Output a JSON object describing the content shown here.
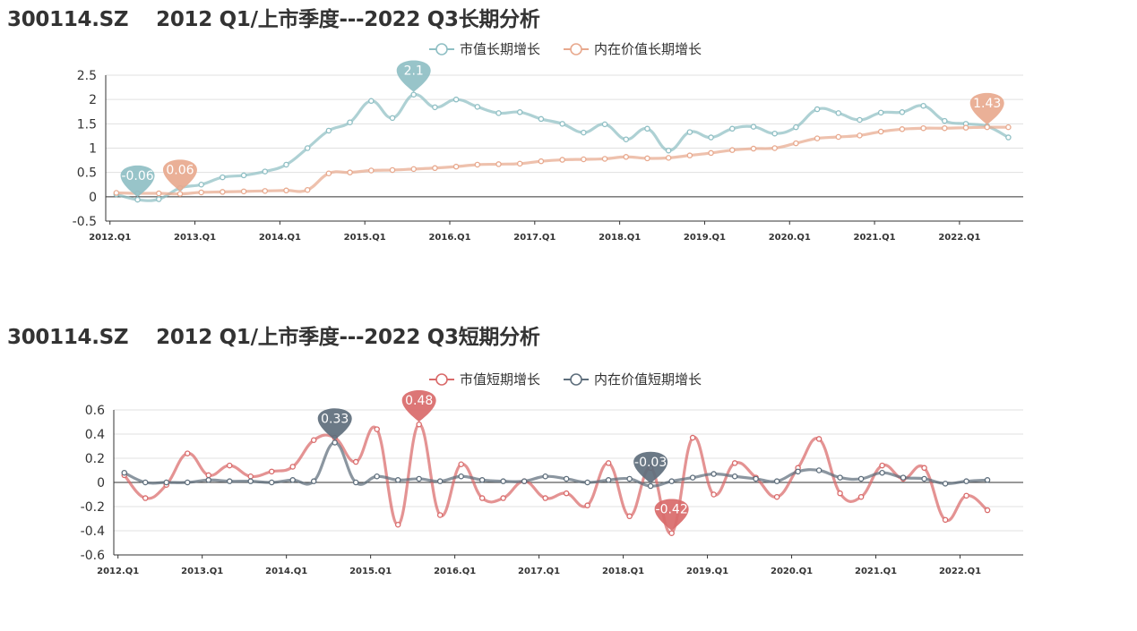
{
  "chart_data": [
    {
      "type": "line",
      "title": "300114.SZ    2012 Q1/上市季度---2022 Q3长期分析",
      "xlabel": "",
      "ylabel": "",
      "x_tick_labels": [
        "2012.Q1",
        "2013.Q1",
        "2014.Q1",
        "2015.Q1",
        "2016.Q1",
        "2017.Q1",
        "2018.Q1",
        "2019.Q1",
        "2020.Q1",
        "2021.Q1",
        "2022.Q1"
      ],
      "y_tick_labels": [
        "2.5",
        "2",
        "1.5",
        "1",
        "0.5",
        "0",
        "-0.5"
      ],
      "ylim": [
        -0.5,
        2.5
      ],
      "x_start_quarter": 1,
      "legend_position": "top-center",
      "grid": true,
      "series": [
        {
          "name": "市值长期增长",
          "color": "#8fbfc4",
          "values": [
            0.05,
            -0.06,
            -0.05,
            0.18,
            0.25,
            0.4,
            0.44,
            0.52,
            0.66,
            1.0,
            1.36,
            1.53,
            1.97,
            1.62,
            2.1,
            1.84,
            2.0,
            1.85,
            1.72,
            1.74,
            1.6,
            1.5,
            1.32,
            1.49,
            1.18,
            1.4,
            0.95,
            1.33,
            1.22,
            1.4,
            1.44,
            1.3,
            1.43,
            1.8,
            1.72,
            1.58,
            1.73,
            1.74,
            1.87,
            1.56,
            1.5,
            1.45,
            1.22
          ],
          "markers": [
            {
              "x_index": 1,
              "label": "-0.06",
              "type": "min"
            },
            {
              "x_index": 14,
              "label": "2.1",
              "type": "max"
            }
          ]
        },
        {
          "name": "内在价值长期增长",
          "color": "#e8a98e",
          "values": [
            0.08,
            0.07,
            0.07,
            0.06,
            0.09,
            0.1,
            0.11,
            0.12,
            0.13,
            0.14,
            0.48,
            0.5,
            0.54,
            0.55,
            0.57,
            0.59,
            0.62,
            0.66,
            0.67,
            0.68,
            0.73,
            0.76,
            0.77,
            0.78,
            0.82,
            0.79,
            0.8,
            0.85,
            0.9,
            0.96,
            0.99,
            1.0,
            1.1,
            1.2,
            1.23,
            1.26,
            1.34,
            1.39,
            1.41,
            1.41,
            1.42,
            1.43,
            1.43
          ],
          "markers": [
            {
              "x_index": 3,
              "label": "0.06",
              "type": "min"
            },
            {
              "x_index": 41,
              "label": "1.43",
              "type": "max"
            }
          ]
        }
      ]
    },
    {
      "type": "line",
      "title": "300114.SZ    2012 Q1/上市季度---2022 Q3短期分析",
      "xlabel": "",
      "ylabel": "",
      "x_tick_labels": [
        "2012.Q1",
        "2013.Q1",
        "2014.Q1",
        "2015.Q1",
        "2016.Q1",
        "2017.Q1",
        "2018.Q1",
        "2019.Q1",
        "2020.Q1",
        "2021.Q1",
        "2022.Q1"
      ],
      "y_tick_labels": [
        "0.6",
        "0.4",
        "0.2",
        "0",
        "-0.2",
        "-0.4",
        "-0.6"
      ],
      "ylim": [
        -0.6,
        0.6
      ],
      "x_start_quarter": 1,
      "legend_position": "top-center",
      "grid": true,
      "series": [
        {
          "name": "市值短期增长",
          "color": "#d96a6a",
          "values": [
            0.06,
            -0.13,
            -0.02,
            0.24,
            0.06,
            0.14,
            0.05,
            0.09,
            0.13,
            0.35,
            0.37,
            0.17,
            0.44,
            -0.35,
            0.48,
            -0.27,
            0.15,
            -0.13,
            -0.13,
            0.01,
            -0.13,
            -0.09,
            -0.19,
            0.16,
            -0.28,
            0.12,
            -0.42,
            0.37,
            -0.1,
            0.16,
            0.04,
            -0.12,
            0.12,
            0.36,
            -0.09,
            -0.12,
            0.14,
            0.03,
            0.12,
            -0.31,
            -0.11,
            -0.23
          ],
          "markers": [
            {
              "x_index": 14,
              "label": "0.48",
              "type": "max"
            },
            {
              "x_index": 26,
              "label": "-0.42",
              "type": "min"
            }
          ]
        },
        {
          "name": "内在价值短期增长",
          "color": "#5e6e7c",
          "values": [
            0.08,
            0.0,
            0.0,
            0.0,
            0.02,
            0.01,
            0.01,
            0.0,
            0.02,
            0.01,
            0.33,
            0.0,
            0.05,
            0.02,
            0.03,
            0.01,
            0.05,
            0.02,
            0.01,
            0.01,
            0.05,
            0.03,
            0.0,
            0.02,
            0.03,
            -0.03,
            0.01,
            0.04,
            0.07,
            0.05,
            0.03,
            0.01,
            0.09,
            0.1,
            0.04,
            0.03,
            0.08,
            0.04,
            0.03,
            -0.01,
            0.01,
            0.02
          ],
          "markers": [
            {
              "x_index": 10,
              "label": "0.33",
              "type": "max"
            },
            {
              "x_index": 25,
              "label": "-0.03",
              "type": "min"
            }
          ]
        }
      ]
    }
  ]
}
